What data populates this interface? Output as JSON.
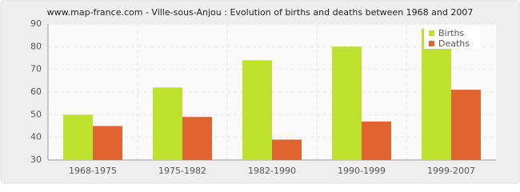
{
  "chart_data": {
    "type": "bar",
    "title": "www.map-france.com - Ville-sous-Anjou : Evolution of births and deaths between 1968 and 2007",
    "categories": [
      "1968-1975",
      "1975-1982",
      "1982-1990",
      "1990-1999",
      "1999-2007"
    ],
    "series": [
      {
        "name": "Births",
        "color": "#bde22d",
        "values": [
          50,
          62,
          74,
          80,
          88
        ]
      },
      {
        "name": "Deaths",
        "color": "#e0642f",
        "values": [
          45,
          49,
          39,
          47,
          61
        ]
      }
    ],
    "ylim": [
      30,
      90
    ],
    "yticks": [
      30,
      40,
      50,
      60,
      70,
      80,
      90
    ],
    "grid": true,
    "legend": "top-right"
  }
}
